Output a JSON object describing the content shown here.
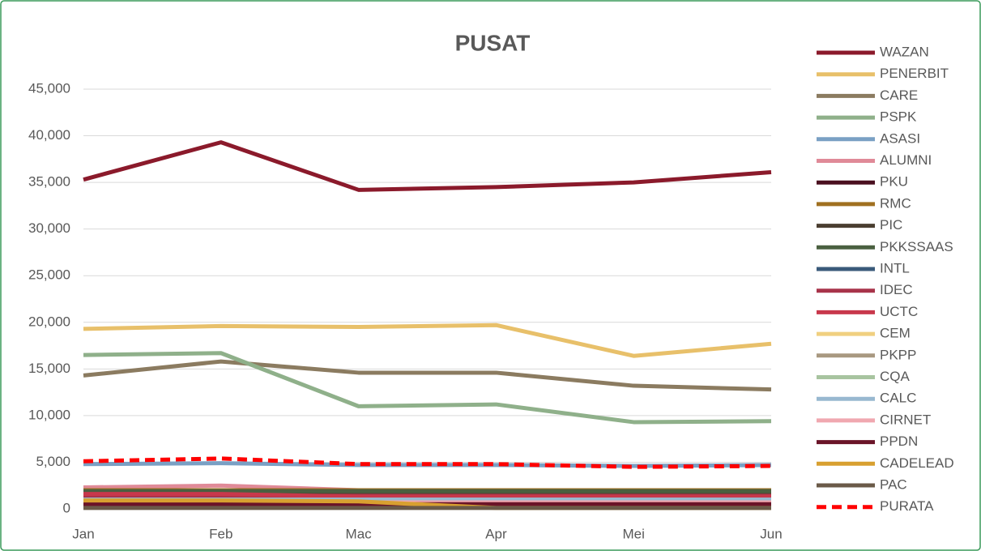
{
  "chart_data": {
    "type": "line",
    "title": "PUSAT",
    "categories": [
      "Jan",
      "Feb",
      "Mac",
      "Apr",
      "Mei",
      "Jun"
    ],
    "ylim": [
      0,
      45000
    ],
    "yticks": [
      0,
      {
        "value": 5000,
        "label": "5,000"
      },
      {
        "value": 10000,
        "label": "10,000"
      },
      {
        "value": 15000,
        "label": "15,000"
      },
      {
        "value": 20000,
        "label": "20,000"
      },
      {
        "value": 25000,
        "label": "25,000"
      },
      {
        "value": 30000,
        "label": "30,000"
      },
      {
        "value": 35000,
        "label": "35,000"
      },
      {
        "value": 40000,
        "label": "40,000"
      },
      {
        "value": 45000,
        "label": "45,000"
      }
    ],
    "grid": true,
    "legend": "right",
    "series": [
      {
        "name": "WAZAN",
        "color": "#8b1a2b",
        "values": [
          35300,
          39300,
          34200,
          34500,
          35000,
          36100
        ]
      },
      {
        "name": "PENERBIT",
        "color": "#e8c06a",
        "values": [
          19300,
          19600,
          19500,
          19700,
          16400,
          17700
        ]
      },
      {
        "name": "CARE",
        "color": "#8b7b60",
        "values": [
          14300,
          15800,
          14600,
          14600,
          13200,
          12800
        ]
      },
      {
        "name": "PSPK",
        "color": "#8fb08a",
        "values": [
          16500,
          16700,
          11000,
          11200,
          9300,
          9400
        ]
      },
      {
        "name": "ASASI",
        "color": "#7aa0c4",
        "values": [
          4800,
          4900,
          4700,
          4700,
          4600,
          4700
        ]
      },
      {
        "name": "ALUMNI",
        "color": "#e08a98",
        "values": [
          2300,
          2500,
          2000,
          2000,
          2000,
          2000
        ]
      },
      {
        "name": "PKU",
        "color": "#4a1020",
        "values": [
          1500,
          1500,
          1500,
          1500,
          1500,
          1500
        ]
      },
      {
        "name": "RMC",
        "color": "#a07020",
        "values": [
          2000,
          2000,
          2000,
          2000,
          2000,
          2000
        ]
      },
      {
        "name": "PIC",
        "color": "#4a3e30",
        "values": [
          1800,
          1800,
          1800,
          1800,
          1800,
          1800
        ]
      },
      {
        "name": "PKKSSAAS",
        "color": "#4a6040",
        "values": [
          1900,
          1900,
          1900,
          1900,
          1900,
          1900
        ]
      },
      {
        "name": "INTL",
        "color": "#3a5a7a",
        "values": [
          1200,
          1200,
          1200,
          1200,
          1200,
          1200
        ]
      },
      {
        "name": "IDEC",
        "color": "#a8344a",
        "values": [
          1400,
          1400,
          1400,
          1400,
          1400,
          1400
        ]
      },
      {
        "name": "UCTC",
        "color": "#c8384c",
        "values": [
          1600,
          1600,
          1300,
          1300,
          1300,
          1300
        ]
      },
      {
        "name": "CEM",
        "color": "#f0d080",
        "values": [
          800,
          800,
          800,
          300,
          300,
          300
        ]
      },
      {
        "name": "PKPP",
        "color": "#a89880",
        "values": [
          200,
          200,
          200,
          200,
          200,
          200
        ]
      },
      {
        "name": "CQA",
        "color": "#a8c4a0",
        "values": [
          300,
          300,
          300,
          300,
          300,
          300
        ]
      },
      {
        "name": "CALC",
        "color": "#98b8d0",
        "values": [
          1000,
          1000,
          1000,
          1000,
          1000,
          1000
        ]
      },
      {
        "name": "CIRNET",
        "color": "#f0a8b0",
        "values": [
          700,
          700,
          700,
          700,
          700,
          700
        ]
      },
      {
        "name": "PPDN",
        "color": "#6a1428",
        "values": [
          500,
          500,
          500,
          500,
          500,
          500
        ]
      },
      {
        "name": "CADELEAD",
        "color": "#d8a030",
        "values": [
          900,
          900,
          800,
          100,
          100,
          100
        ]
      },
      {
        "name": "PAC",
        "color": "#6a5a48",
        "values": [
          100,
          100,
          100,
          100,
          100,
          100
        ]
      },
      {
        "name": "PURATA",
        "color": "#ff0000",
        "dashed": true,
        "values": [
          5100,
          5400,
          4800,
          4800,
          4500,
          4600
        ]
      }
    ]
  }
}
